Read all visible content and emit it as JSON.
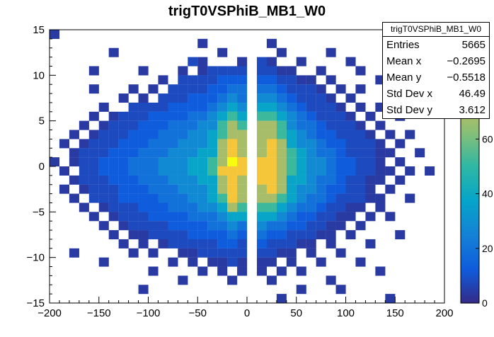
{
  "chart_data": {
    "type": "heatmap",
    "title": "trigT0VSPhiB_MB1_W0",
    "x_range": [
      -200,
      200
    ],
    "y_range": [
      -15,
      15
    ],
    "z_range": [
      0,
      100
    ],
    "x_minor_step": 10,
    "y_minor_step": 1,
    "x_major_ticks": [
      {
        "value": -200,
        "label": "−200"
      },
      {
        "value": -150,
        "label": "−150"
      },
      {
        "value": -100,
        "label": "−100"
      },
      {
        "value": -50,
        "label": "−50"
      },
      {
        "value": 0,
        "label": "0"
      },
      {
        "value": 50,
        "label": "50"
      },
      {
        "value": 100,
        "label": "100"
      },
      {
        "value": 150,
        "label": "150"
      },
      {
        "value": 200,
        "label": "200"
      }
    ],
    "y_major_ticks": [
      {
        "value": -15,
        "label": "−15"
      },
      {
        "value": -10,
        "label": "−10"
      },
      {
        "value": -5,
        "label": "−5"
      },
      {
        "value": 0,
        "label": "0"
      },
      {
        "value": 5,
        "label": "5"
      },
      {
        "value": 10,
        "label": "10"
      },
      {
        "value": 15,
        "label": "15"
      }
    ],
    "colorbar": {
      "ticks": [
        {
          "value": 0,
          "label": "0"
        },
        {
          "value": 20,
          "label": "20"
        },
        {
          "value": 40,
          "label": "40"
        },
        {
          "value": 60,
          "label": "60"
        }
      ]
    },
    "palette": {
      "positions": [
        0,
        0.125,
        0.25,
        0.375,
        0.5,
        0.625,
        0.75,
        0.875,
        1
      ],
      "colors": [
        "#352a87",
        "#0f5cdd",
        "#1481d6",
        "#06a4ca",
        "#2eb7a4",
        "#87bf77",
        "#d1bb59",
        "#fec832",
        "#f9fb0e"
      ]
    },
    "bins": {
      "x0": -200,
      "x_width": 10,
      "nx": 40,
      "y_top": 15,
      "y_width": 1,
      "ny": 30,
      "value_levels": {
        ".": 0,
        "1": 4,
        "2": 8,
        "3": 13,
        "4": 20,
        "5": 28,
        "6": 38,
        "7": 52,
        "8": 68,
        "9": 85,
        "A": 100
      },
      "rows_top_to_bottom": [
        "1.......................................",
        "...............1......1.................",
        "......1..........1.....1....1...........",
        "..............21...1.21..1....1.........",
        "....1....1...1.12222.2211..1...1........",
        "...........1.2222333.332211.1....1......",
        "....1...1.1.22223344.4432221.1.1........",
        ".......1.1.222333454.55432221.1...1.....",
        ".....1..222233334565.665432221.1.1......",
        "....1.12223333445676.7765432221.1..1....",
        "...1.122233344455787.88754432221.1......",
        "..1.1222333444556788.887654332221.1.1...",
        ".1.12223334445556898.8986554332221.1....",
        "..122233344455566898.89876544322211..1..",
        "1.1223334445556678A9.9987655433221.1....",
        ".1.22333444555667999.99876554332211.1.1.",
        "..122233344455566898.9986654432211.1....",
        ".1.12223334445556898.898655433221.1.....",
        "..1.2223333444556798.8876544322211..1...",
        "...1.122233344455687.77654432211.1......",
        "....1.12223333444566.6654332211.1.1.....",
        ".....1.1222233334454.544332211.1........",
        "......1.112222333343.43322211.1....1....",
        ".......1.1.122222332.322211.1...1.......",
        "..1.....1.1..1122222.2211.1..1..........",
        ".....1......1.1.1121.11.1..1...1........",
        "..........1....1.1.1.1.1.1.......1......",
        ".............1....1...1.....1...........",
        ".........1...............1...1..........",
        ".......................1..........1....."
      ]
    },
    "stats": {
      "name": "trigT0VSPhiB_MB1_W0",
      "rows": [
        {
          "label": "Entries",
          "value": "5665"
        },
        {
          "label": "Mean x",
          "value": "−0.2695"
        },
        {
          "label": "Mean y",
          "value": "−0.5518"
        },
        {
          "label": "Std Dev x",
          "value": "46.49"
        },
        {
          "label": "Std Dev y",
          "value": "3.612"
        }
      ]
    }
  }
}
